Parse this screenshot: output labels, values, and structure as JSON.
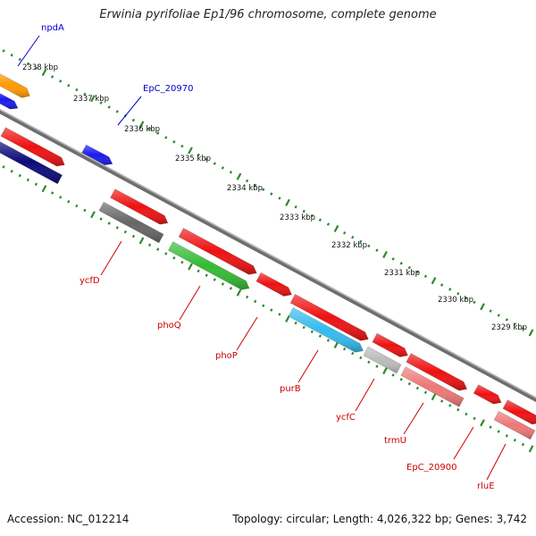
{
  "title": "Erwinia pyrifoliae Ep1/96 chromosome, complete genome",
  "footer": {
    "accession": "Accession: NC_012214",
    "summary": "Topology: circular; Length: 4,026,322 bp; Genes: 3,742"
  },
  "colors": {
    "backbone": "#7f7f7f",
    "tick_green": "#2b8a2b",
    "label_red": "#cc0000",
    "label_blue": "#0000cc",
    "red_gene": "#ee1111",
    "blue_gene": "#1a1aee",
    "navy_gene": "#0a0a7a",
    "orange_gene": "#ff9900",
    "green_gene": "#33bb33",
    "cyan_gene": "#33bbee",
    "grey_gene": "#666666",
    "lightgrey_gene": "#bbbbbb",
    "pink_gene": "#ee7777"
  },
  "diagram": {
    "type": "circular genome map (zoomed segment)",
    "ticks": [
      {
        "label": "2338 kbp"
      },
      {
        "label": "2337 kbp"
      },
      {
        "label": "2336 kbp"
      },
      {
        "label": "2335 kbp"
      },
      {
        "label": "2334 kbp"
      },
      {
        "label": "2333 kbp"
      },
      {
        "label": "2332 kbp"
      },
      {
        "label": "2331 kbp"
      },
      {
        "label": "2330 kbp"
      },
      {
        "label": "2329 kbp"
      }
    ],
    "gene_labels": [
      {
        "name": "npdA",
        "color_key": "label_blue"
      },
      {
        "name": "EpC_20970",
        "color_key": "label_blue"
      },
      {
        "name": "ycfD",
        "color_key": "label_red"
      },
      {
        "name": "phoQ",
        "color_key": "label_red"
      },
      {
        "name": "phoP",
        "color_key": "label_red"
      },
      {
        "name": "purB",
        "color_key": "label_red"
      },
      {
        "name": "ycfC",
        "color_key": "label_red"
      },
      {
        "name": "trmU",
        "color_key": "label_red"
      },
      {
        "name": "EpC_20900",
        "color_key": "label_red"
      },
      {
        "name": "rluE",
        "color_key": "label_red"
      }
    ]
  }
}
